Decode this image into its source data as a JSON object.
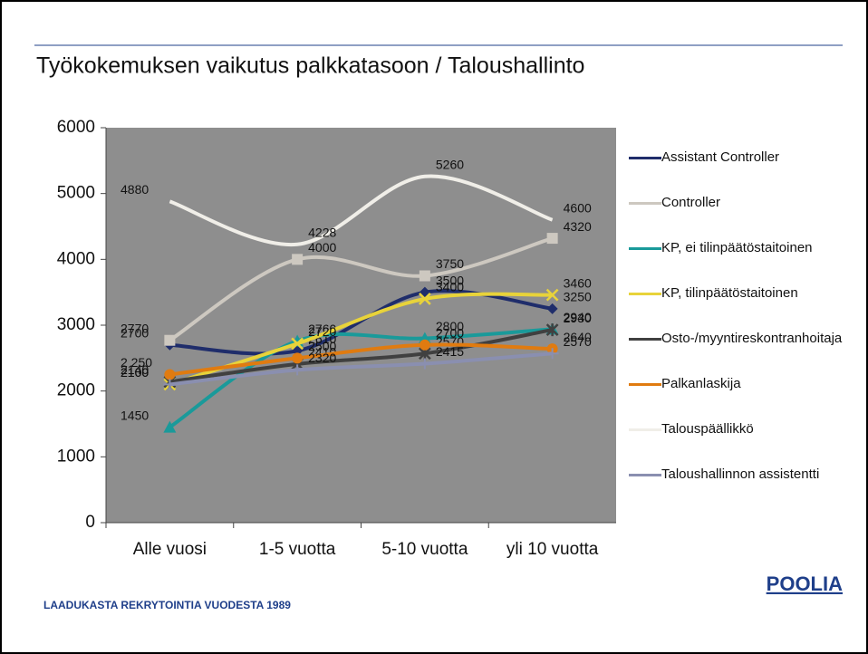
{
  "chart_data": {
    "type": "line",
    "title": "Työkokemuksen vaikutus palkkatasoon / Taloushallinto",
    "footer": "LAADUKASTA REKRYTOINTIA VUODESTA 1989",
    "logo": "POOLIA",
    "categories": [
      "Alle vuosi",
      "1-5 vuotta",
      "5-10 vuotta",
      "yli 10 vuotta"
    ],
    "ylim": [
      0,
      6000
    ],
    "yticks": [
      0,
      1000,
      2000,
      3000,
      4000,
      5000,
      6000
    ],
    "series": [
      {
        "name": "Assistant Controller",
        "color": "#1f2d6b",
        "marker": "diamond",
        "values": [
          2700,
          2610,
          3500,
          3250
        ]
      },
      {
        "name": "Controller",
        "color": "#cdc8c0",
        "marker": "square",
        "values": [
          2770,
          4000,
          3750,
          4320
        ]
      },
      {
        "name": "KP, ei tilinpäätöstaitoinen",
        "color": "#1a9a9a",
        "marker": "triangle",
        "values": [
          1450,
          2760,
          2800,
          2940
        ]
      },
      {
        "name": "KP, tilinpäätöstaitoinen",
        "color": "#e8d33a",
        "marker": "x",
        "values": [
          2100,
          2720,
          3400,
          3460
        ]
      },
      {
        "name": "Osto-/myyntireskontranhoitaja",
        "color": "#404040",
        "marker": "star",
        "values": [
          2140,
          2410,
          2570,
          2930
        ]
      },
      {
        "name": "Palkanlaskija",
        "color": "#e07b10",
        "marker": "circle",
        "values": [
          2250,
          2500,
          2700,
          2640
        ],
        "value_labels": [
          "2 250",
          "2500",
          "2700",
          "2640"
        ]
      },
      {
        "name": "Talouspäällikkö",
        "color": "#f0eee8",
        "marker": "none",
        "values": [
          4880,
          4228,
          5260,
          4600
        ]
      },
      {
        "name": "Taloushallinnon assistentti",
        "color": "#8a8fb0",
        "marker": "plus",
        "values": [
          2100,
          2320,
          2415,
          2570
        ]
      }
    ]
  }
}
